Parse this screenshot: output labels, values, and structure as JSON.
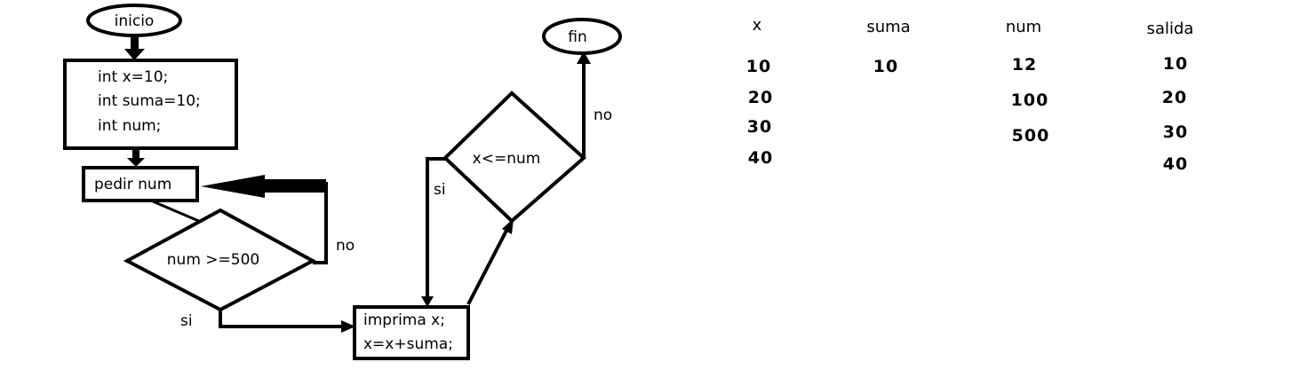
{
  "flowchart": {
    "start": "inicio",
    "init_lines": [
      "int x=10;",
      "int suma=10;",
      "int num;"
    ],
    "input": "pedir num",
    "decision_num": "num >=500",
    "decision_num_no": "no",
    "decision_num_si": "si",
    "process_lines": [
      "imprima x;",
      "x=x+suma;"
    ],
    "decision_x": "x<=num",
    "decision_x_si": "si",
    "decision_x_no": "no",
    "end": "fin"
  },
  "trace_table": {
    "columns": [
      {
        "header": "x",
        "values": [
          "10",
          "20",
          "30",
          "40"
        ]
      },
      {
        "header": "suma",
        "values": [
          "10"
        ]
      },
      {
        "header": "num",
        "values": [
          "12",
          "100",
          "500"
        ]
      },
      {
        "header": "salida",
        "values": [
          "10",
          "20",
          "30",
          "40"
        ]
      }
    ]
  }
}
